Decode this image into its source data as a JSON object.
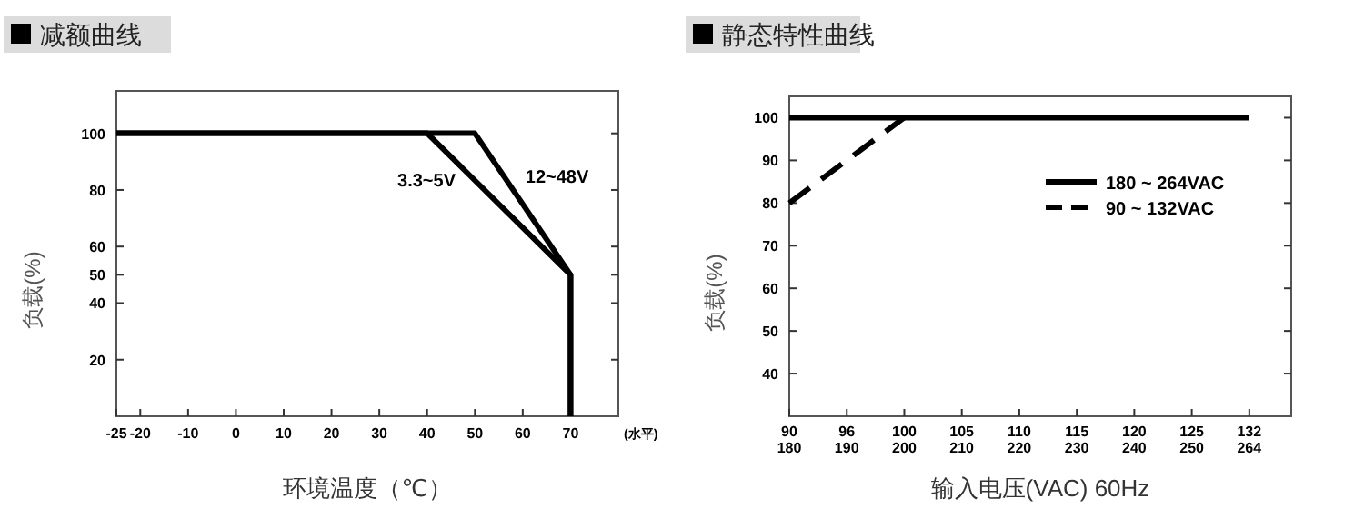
{
  "chart_data": [
    {
      "type": "line",
      "title": "减额曲线",
      "xlabel": "环境温度（℃）",
      "ylabel": "负载(%)",
      "annotations": [
        "(水平)"
      ],
      "xlim": [
        -25,
        80
      ],
      "xticks": [
        -25,
        -20,
        -10,
        0,
        10,
        20,
        30,
        40,
        50,
        60,
        70
      ],
      "ylim": [
        0,
        115
      ],
      "yticks": [
        20,
        40,
        50,
        60,
        80,
        100
      ],
      "series": [
        {
          "name": "12~48V",
          "color": "#000000",
          "x": [
            -25,
            50,
            70,
            70
          ],
          "values": [
            100,
            100,
            50,
            0
          ]
        },
        {
          "name": "3.3~5V",
          "color": "#000000",
          "x": [
            -25,
            40,
            70,
            70
          ],
          "values": [
            100,
            100,
            50,
            0
          ]
        }
      ],
      "line_style": "solid",
      "legend": false,
      "grid": false
    },
    {
      "type": "line",
      "title": "静态特性曲线",
      "xlabel": "输入电压(VAC) 60Hz",
      "ylabel": "负载(%)",
      "categories": [
        "90\n180",
        "96\n190",
        "100\n200",
        "105\n210",
        "110\n220",
        "115\n230",
        "120\n240",
        "125\n250",
        "132\n264"
      ],
      "ylim": [
        30,
        105
      ],
      "yticks": [
        40,
        50,
        60,
        70,
        80,
        90,
        100
      ],
      "series": [
        {
          "name": "180 ~ 264VAC",
          "color": "#000000",
          "line_style": "solid",
          "values": [
            100,
            100,
            100,
            100,
            100,
            100,
            100,
            100,
            100
          ]
        },
        {
          "name": "90 ~ 132VAC",
          "color": "#000000",
          "line_style": "dashed",
          "values": [
            80,
            90,
            100,
            null,
            null,
            null,
            null,
            null,
            null
          ]
        }
      ],
      "legend": "top right",
      "grid": false
    }
  ]
}
